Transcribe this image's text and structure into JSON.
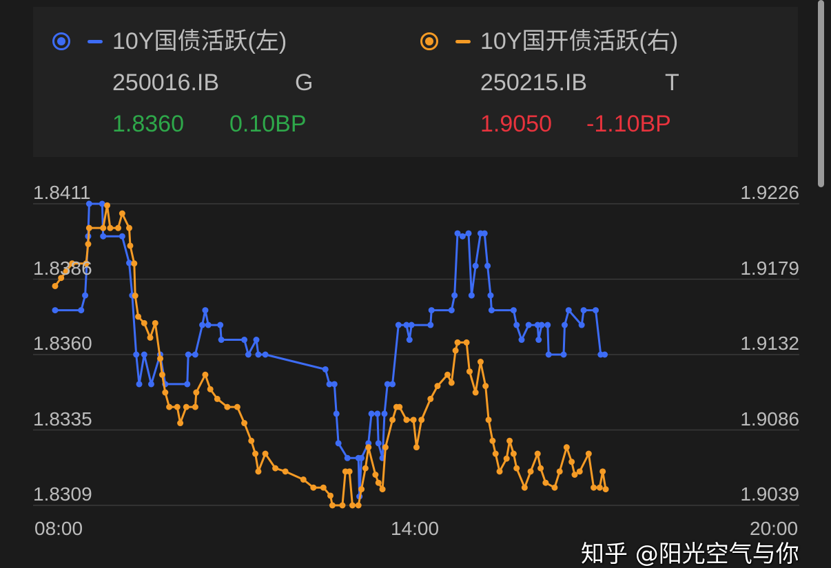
{
  "legend": {
    "left": {
      "name": "10Y国债活跃(左)",
      "code": "250016.IB",
      "tag": "G",
      "value": "1.8360",
      "change": "0.10BP",
      "color": "#3d6cf5"
    },
    "right": {
      "name": "10Y国开债活跃(右)",
      "code": "250215.IB",
      "tag": "T",
      "value": "1.9050",
      "change": "-1.10BP",
      "color": "#f59b25"
    }
  },
  "watermark": "知乎 @阳光空气与你",
  "chart_data": {
    "type": "line",
    "x_range": [
      "08:00",
      "20:00"
    ],
    "x_ticks": [
      "08:00",
      "14:00",
      "20:00"
    ],
    "y_left": {
      "range": [
        1.8309,
        1.8411
      ],
      "ticks": [
        "1.8411",
        "1.8386",
        "1.8360",
        "1.8335",
        "1.8309"
      ]
    },
    "y_right": {
      "range": [
        1.9039,
        1.9226
      ],
      "ticks": [
        "1.9226",
        "1.9179",
        "1.9132",
        "1.9086",
        "1.9039"
      ]
    },
    "grid": true,
    "series": [
      {
        "name": "10Y国债活跃(左)",
        "axis": "left",
        "color": "#3d6cf5",
        "x": [
          "08:00",
          "08:26",
          "08:30",
          "08:33",
          "08:34",
          "08:47",
          "08:48",
          "09:07",
          "09:14",
          "09:17",
          "09:21",
          "09:24",
          "09:29",
          "09:36",
          "09:45",
          "09:50",
          "10:12",
          "10:13",
          "10:20",
          "10:27",
          "10:30",
          "10:33",
          "10:45",
          "10:46",
          "11:09",
          "11:13",
          "11:21",
          "11:23",
          "11:30",
          "12:30",
          "12:34",
          "12:39",
          "12:41",
          "12:43",
          "12:52",
          "13:03",
          "13:04",
          "13:06",
          "13:13",
          "13:16",
          "13:22",
          "13:23",
          "13:27",
          "13:29",
          "13:32",
          "13:37",
          "13:43",
          "13:51",
          "13:54",
          "13:56",
          "14:15",
          "14:16",
          "14:36",
          "14:39",
          "14:42",
          "14:47",
          "14:53",
          "14:56",
          "15:00",
          "15:05",
          "15:09",
          "15:12",
          "15:15",
          "15:16",
          "15:38",
          "15:41",
          "15:46",
          "15:53",
          "16:02",
          "16:03",
          "16:06",
          "16:12",
          "16:13",
          "16:28",
          "16:29",
          "16:33",
          "16:46",
          "16:48",
          "17:00",
          "17:05",
          "17:09"
        ],
        "values": [
          1.8375,
          1.8375,
          1.838,
          1.84,
          1.8411,
          1.8411,
          1.84,
          1.84,
          1.8391,
          1.838,
          1.836,
          1.835,
          1.836,
          1.835,
          1.836,
          1.835,
          1.835,
          1.836,
          1.836,
          1.837,
          1.8375,
          1.837,
          1.837,
          1.8365,
          1.8365,
          1.836,
          1.8365,
          1.836,
          1.836,
          1.8355,
          1.835,
          1.835,
          1.834,
          1.833,
          1.8325,
          1.8325,
          1.8312,
          1.8325,
          1.833,
          1.834,
          1.834,
          1.833,
          1.8325,
          1.834,
          1.835,
          1.835,
          1.837,
          1.837,
          1.8365,
          1.837,
          1.837,
          1.8375,
          1.8375,
          1.838,
          1.8401,
          1.84,
          1.8401,
          1.838,
          1.839,
          1.8401,
          1.8401,
          1.839,
          1.838,
          1.8375,
          1.8375,
          1.837,
          1.8365,
          1.837,
          1.837,
          1.8365,
          1.837,
          1.837,
          1.836,
          1.836,
          1.837,
          1.8375,
          1.837,
          1.8375,
          1.8375,
          1.836,
          1.836
        ]
      },
      {
        "name": "10Y国开债活跃(右)",
        "axis": "right",
        "color": "#f59b25",
        "x": [
          "08:00",
          "08:06",
          "08:11",
          "08:17",
          "08:31",
          "08:33",
          "08:34",
          "08:48",
          "08:52",
          "08:55",
          "09:03",
          "09:07",
          "09:14",
          "09:15",
          "09:19",
          "09:20",
          "09:23",
          "09:29",
          "09:35",
          "09:40",
          "09:45",
          "09:47",
          "09:50",
          "09:54",
          "10:02",
          "10:05",
          "10:11",
          "10:20",
          "10:21",
          "10:30",
          "10:35",
          "10:42",
          "10:52",
          "11:02",
          "11:09",
          "11:16",
          "11:20",
          "11:23",
          "11:30",
          "11:40",
          "11:50",
          "12:08",
          "12:18",
          "12:28",
          "12:35",
          "12:37",
          "12:47",
          "12:50",
          "12:54",
          "12:57",
          "13:03",
          "13:06",
          "13:10",
          "13:13",
          "13:20",
          "13:23",
          "13:27",
          "13:30",
          "13:37",
          "13:41",
          "13:44",
          "13:51",
          "13:58",
          "14:01",
          "14:06",
          "14:15",
          "14:22",
          "14:32",
          "14:36",
          "14:40",
          "14:42",
          "14:51",
          "14:54",
          "15:00",
          "15:05",
          "15:10",
          "15:13",
          "15:17",
          "15:20",
          "15:24",
          "15:31",
          "15:34",
          "15:38",
          "15:41",
          "15:49",
          "15:55",
          "16:02",
          "16:05",
          "16:10",
          "16:19",
          "16:24",
          "16:31",
          "16:36",
          "16:39",
          "16:44",
          "16:53",
          "16:58",
          "17:04",
          "17:07",
          "17:10"
        ],
        "values": [
          1.9175,
          1.918,
          1.9184,
          1.9189,
          1.9189,
          1.9201,
          1.9211,
          1.9211,
          1.9225,
          1.9211,
          1.9211,
          1.922,
          1.9211,
          1.92,
          1.9189,
          1.9169,
          1.9156,
          1.9152,
          1.9143,
          1.9152,
          1.913,
          1.912,
          1.9109,
          1.91,
          1.91,
          1.909,
          1.91,
          1.91,
          1.9109,
          1.912,
          1.9111,
          1.9105,
          1.91,
          1.91,
          1.909,
          1.9079,
          1.9071,
          1.906,
          1.9071,
          1.9062,
          1.906,
          1.9055,
          1.905,
          1.905,
          1.9045,
          1.9039,
          1.9039,
          1.906,
          1.906,
          1.9039,
          1.9039,
          1.9049,
          1.9062,
          1.9075,
          1.9058,
          1.9053,
          1.9049,
          1.9075,
          1.9092,
          1.91,
          1.91,
          1.9092,
          1.9092,
          1.9075,
          1.9092,
          1.9105,
          1.9113,
          1.912,
          1.9115,
          1.9135,
          1.914,
          1.914,
          1.9122,
          1.9109,
          1.9128,
          1.9113,
          1.9092,
          1.9079,
          1.9071,
          1.906,
          1.9068,
          1.9079,
          1.9071,
          1.9062,
          1.905,
          1.906,
          1.9071,
          1.9062,
          1.9053,
          1.905,
          1.906,
          1.9075,
          1.9066,
          1.9058,
          1.906,
          1.9071,
          1.905,
          1.905,
          1.906,
          1.9049
        ]
      }
    ]
  }
}
